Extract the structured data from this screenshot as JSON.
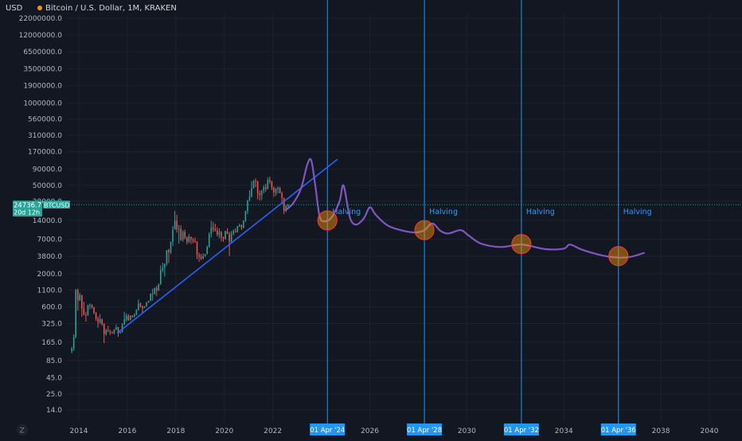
{
  "header": {
    "currency_label": "USD",
    "title": "Bitcoin / U.S. Dollar, 1M, KRAKEN"
  },
  "colors": {
    "background": "#131722",
    "grid": "#1e222d",
    "up": "#26a69a",
    "down": "#ef5350",
    "trendline": "#2962ff",
    "projection": "#7e57c2",
    "halving_line": "#2196f3",
    "circle_fill": "#ff9800",
    "circle_stroke": "#e53935",
    "price_line": "#26a69a"
  },
  "price_tag": {
    "value": "24736.7",
    "countdown": "20d 12h",
    "symbol": "BTCUSD"
  },
  "chart_data": {
    "type": "candlestick",
    "title": "Bitcoin / U.S. Dollar, 1M, KRAKEN",
    "y_scale": "log",
    "y_ticks": [
      "22000000.0",
      "12000000.0",
      "6500000.0",
      "3500000.0",
      "1900000.0",
      "1000000.0",
      "560000.0",
      "310000.0",
      "170000.0",
      "90000.0",
      "50000.0",
      "28000.0",
      "14000.0",
      "7000.0",
      "3800.0",
      "2000.0",
      "1100.0",
      "600.0",
      "325.0",
      "165.0",
      "85.0",
      "45.0",
      "25.0",
      "14.0"
    ],
    "x_ticks": [
      "2014",
      "2016",
      "2018",
      "2020",
      "2022",
      "2026",
      "2030",
      "2034",
      "2038",
      "2040"
    ],
    "candles": [
      {
        "t": "2013-09",
        "o": 120,
        "h": 140,
        "l": 110,
        "c": 130
      },
      {
        "t": "2013-10",
        "o": 130,
        "h": 220,
        "l": 120,
        "c": 200
      },
      {
        "t": "2013-11",
        "o": 200,
        "h": 1150,
        "l": 190,
        "c": 1100
      },
      {
        "t": "2013-12",
        "o": 1100,
        "h": 1160,
        "l": 520,
        "c": 760
      },
      {
        "t": "2014-01",
        "o": 760,
        "h": 1000,
        "l": 740,
        "c": 920
      },
      {
        "t": "2014-02",
        "o": 920,
        "h": 930,
        "l": 420,
        "c": 560
      },
      {
        "t": "2014-03",
        "o": 560,
        "h": 720,
        "l": 440,
        "c": 450
      },
      {
        "t": "2014-04",
        "o": 450,
        "h": 500,
        "l": 350,
        "c": 445
      },
      {
        "t": "2014-05",
        "o": 445,
        "h": 650,
        "l": 430,
        "c": 630
      },
      {
        "t": "2014-06",
        "o": 630,
        "h": 680,
        "l": 550,
        "c": 640
      },
      {
        "t": "2014-07",
        "o": 640,
        "h": 660,
        "l": 560,
        "c": 590
      },
      {
        "t": "2014-08",
        "o": 590,
        "h": 600,
        "l": 460,
        "c": 480
      },
      {
        "t": "2014-09",
        "o": 480,
        "h": 500,
        "l": 360,
        "c": 390
      },
      {
        "t": "2014-10",
        "o": 390,
        "h": 420,
        "l": 280,
        "c": 340
      },
      {
        "t": "2014-11",
        "o": 340,
        "h": 460,
        "l": 320,
        "c": 380
      },
      {
        "t": "2014-12",
        "o": 380,
        "h": 390,
        "l": 300,
        "c": 320
      },
      {
        "t": "2015-01",
        "o": 320,
        "h": 330,
        "l": 160,
        "c": 220
      },
      {
        "t": "2015-02",
        "o": 220,
        "h": 270,
        "l": 210,
        "c": 255
      },
      {
        "t": "2015-03",
        "o": 255,
        "h": 300,
        "l": 240,
        "c": 245
      },
      {
        "t": "2015-04",
        "o": 245,
        "h": 260,
        "l": 215,
        "c": 236
      },
      {
        "t": "2015-05",
        "o": 236,
        "h": 245,
        "l": 225,
        "c": 230
      },
      {
        "t": "2015-06",
        "o": 230,
        "h": 265,
        "l": 220,
        "c": 263
      },
      {
        "t": "2015-07",
        "o": 263,
        "h": 315,
        "l": 255,
        "c": 285
      },
      {
        "t": "2015-08",
        "o": 285,
        "h": 290,
        "l": 200,
        "c": 230
      },
      {
        "t": "2015-09",
        "o": 230,
        "h": 245,
        "l": 225,
        "c": 236
      },
      {
        "t": "2015-10",
        "o": 236,
        "h": 330,
        "l": 235,
        "c": 315
      },
      {
        "t": "2015-11",
        "o": 315,
        "h": 500,
        "l": 310,
        "c": 378
      },
      {
        "t": "2015-12",
        "o": 378,
        "h": 470,
        "l": 350,
        "c": 430
      },
      {
        "t": "2016-01",
        "o": 430,
        "h": 460,
        "l": 360,
        "c": 370
      },
      {
        "t": "2016-02",
        "o": 370,
        "h": 440,
        "l": 365,
        "c": 437
      },
      {
        "t": "2016-03",
        "o": 437,
        "h": 440,
        "l": 400,
        "c": 416
      },
      {
        "t": "2016-04",
        "o": 416,
        "h": 470,
        "l": 410,
        "c": 448
      },
      {
        "t": "2016-05",
        "o": 448,
        "h": 550,
        "l": 440,
        "c": 530
      },
      {
        "t": "2016-06",
        "o": 530,
        "h": 780,
        "l": 520,
        "c": 675
      },
      {
        "t": "2016-07",
        "o": 675,
        "h": 700,
        "l": 580,
        "c": 620
      },
      {
        "t": "2016-08",
        "o": 620,
        "h": 625,
        "l": 470,
        "c": 575
      },
      {
        "t": "2016-09",
        "o": 575,
        "h": 615,
        "l": 570,
        "c": 608
      },
      {
        "t": "2016-10",
        "o": 608,
        "h": 720,
        "l": 605,
        "c": 700
      },
      {
        "t": "2016-11",
        "o": 700,
        "h": 755,
        "l": 690,
        "c": 742
      },
      {
        "t": "2016-12",
        "o": 742,
        "h": 980,
        "l": 740,
        "c": 965
      },
      {
        "t": "2017-01",
        "o": 965,
        "h": 1160,
        "l": 750,
        "c": 965
      },
      {
        "t": "2017-02",
        "o": 965,
        "h": 1210,
        "l": 930,
        "c": 1190
      },
      {
        "t": "2017-03",
        "o": 1190,
        "h": 1290,
        "l": 890,
        "c": 1080
      },
      {
        "t": "2017-04",
        "o": 1080,
        "h": 1400,
        "l": 1070,
        "c": 1350
      },
      {
        "t": "2017-05",
        "o": 1350,
        "h": 2700,
        "l": 1340,
        "c": 2300
      },
      {
        "t": "2017-06",
        "o": 2300,
        "h": 3000,
        "l": 2100,
        "c": 2480
      },
      {
        "t": "2017-07",
        "o": 2480,
        "h": 2900,
        "l": 1800,
        "c": 2880
      },
      {
        "t": "2017-08",
        "o": 2880,
        "h": 4700,
        "l": 2700,
        "c": 4740
      },
      {
        "t": "2017-09",
        "o": 4740,
        "h": 4980,
        "l": 2970,
        "c": 4340
      },
      {
        "t": "2017-10",
        "o": 4340,
        "h": 6450,
        "l": 4100,
        "c": 6450
      },
      {
        "t": "2017-11",
        "o": 6450,
        "h": 11400,
        "l": 5500,
        "c": 10000
      },
      {
        "t": "2017-12",
        "o": 10000,
        "h": 19700,
        "l": 10000,
        "c": 13800
      },
      {
        "t": "2018-01",
        "o": 13800,
        "h": 17200,
        "l": 9000,
        "c": 10200
      },
      {
        "t": "2018-02",
        "o": 10200,
        "h": 11800,
        "l": 6000,
        "c": 10300
      },
      {
        "t": "2018-03",
        "o": 10300,
        "h": 11700,
        "l": 6600,
        "c": 6900
      },
      {
        "t": "2018-04",
        "o": 6900,
        "h": 9800,
        "l": 6400,
        "c": 9200
      },
      {
        "t": "2018-05",
        "o": 9200,
        "h": 10000,
        "l": 7000,
        "c": 7500
      },
      {
        "t": "2018-06",
        "o": 7500,
        "h": 7800,
        "l": 5800,
        "c": 6400
      },
      {
        "t": "2018-07",
        "o": 6400,
        "h": 8500,
        "l": 6100,
        "c": 7700
      },
      {
        "t": "2018-08",
        "o": 7700,
        "h": 7800,
        "l": 5900,
        "c": 7000
      },
      {
        "t": "2018-09",
        "o": 7000,
        "h": 7400,
        "l": 6100,
        "c": 6600
      },
      {
        "t": "2018-10",
        "o": 6600,
        "h": 7500,
        "l": 6200,
        "c": 6300
      },
      {
        "t": "2018-11",
        "o": 6300,
        "h": 6600,
        "l": 3400,
        "c": 4000
      },
      {
        "t": "2018-12",
        "o": 4000,
        "h": 4300,
        "l": 3100,
        "c": 3700
      },
      {
        "t": "2019-01",
        "o": 3700,
        "h": 4100,
        "l": 3300,
        "c": 3450
      },
      {
        "t": "2019-02",
        "o": 3450,
        "h": 4200,
        "l": 3400,
        "c": 3800
      },
      {
        "t": "2019-03",
        "o": 3800,
        "h": 4100,
        "l": 3700,
        "c": 4100
      },
      {
        "t": "2019-04",
        "o": 4100,
        "h": 5600,
        "l": 4050,
        "c": 5300
      },
      {
        "t": "2019-05",
        "o": 5300,
        "h": 9000,
        "l": 5200,
        "c": 8550
      },
      {
        "t": "2019-06",
        "o": 8550,
        "h": 13800,
        "l": 7500,
        "c": 10800
      },
      {
        "t": "2019-07",
        "o": 10800,
        "h": 13200,
        "l": 9100,
        "c": 10100
      },
      {
        "t": "2019-08",
        "o": 10100,
        "h": 12300,
        "l": 9300,
        "c": 9600
      },
      {
        "t": "2019-09",
        "o": 9600,
        "h": 10900,
        "l": 7800,
        "c": 8300
      },
      {
        "t": "2019-10",
        "o": 8300,
        "h": 10400,
        "l": 7300,
        "c": 9150
      },
      {
        "t": "2019-11",
        "o": 9150,
        "h": 9500,
        "l": 6500,
        "c": 7550
      },
      {
        "t": "2019-12",
        "o": 7550,
        "h": 7750,
        "l": 6400,
        "c": 7200
      },
      {
        "t": "2020-01",
        "o": 7200,
        "h": 9600,
        "l": 6900,
        "c": 9350
      },
      {
        "t": "2020-02",
        "o": 9350,
        "h": 10500,
        "l": 8500,
        "c": 8550
      },
      {
        "t": "2020-03",
        "o": 8550,
        "h": 9200,
        "l": 3800,
        "c": 6400
      },
      {
        "t": "2020-04",
        "o": 6400,
        "h": 9500,
        "l": 6200,
        "c": 8650
      },
      {
        "t": "2020-05",
        "o": 8650,
        "h": 10100,
        "l": 8100,
        "c": 9450
      },
      {
        "t": "2020-06",
        "o": 9450,
        "h": 10400,
        "l": 8900,
        "c": 9150
      },
      {
        "t": "2020-07",
        "o": 9150,
        "h": 11450,
        "l": 8950,
        "c": 11350
      },
      {
        "t": "2020-08",
        "o": 11350,
        "h": 12450,
        "l": 11000,
        "c": 11650
      },
      {
        "t": "2020-09",
        "o": 11650,
        "h": 12100,
        "l": 9900,
        "c": 10800
      },
      {
        "t": "2020-10",
        "o": 10800,
        "h": 14000,
        "l": 10400,
        "c": 13800
      },
      {
        "t": "2020-11",
        "o": 13800,
        "h": 19800,
        "l": 13200,
        "c": 19700
      },
      {
        "t": "2020-12",
        "o": 19700,
        "h": 29300,
        "l": 17600,
        "c": 28900
      },
      {
        "t": "2021-01",
        "o": 28900,
        "h": 41900,
        "l": 28200,
        "c": 33100
      },
      {
        "t": "2021-02",
        "o": 33100,
        "h": 58300,
        "l": 32300,
        "c": 45200
      },
      {
        "t": "2021-03",
        "o": 45200,
        "h": 61700,
        "l": 44900,
        "c": 58800
      },
      {
        "t": "2021-04",
        "o": 58800,
        "h": 64800,
        "l": 47000,
        "c": 57700
      },
      {
        "t": "2021-05",
        "o": 57700,
        "h": 59500,
        "l": 30000,
        "c": 37300
      },
      {
        "t": "2021-06",
        "o": 37300,
        "h": 41300,
        "l": 28800,
        "c": 35000
      },
      {
        "t": "2021-07",
        "o": 35000,
        "h": 42400,
        "l": 29300,
        "c": 41500
      },
      {
        "t": "2021-08",
        "o": 41500,
        "h": 50500,
        "l": 37300,
        "c": 47100
      },
      {
        "t": "2021-09",
        "o": 47100,
        "h": 52900,
        "l": 39600,
        "c": 43800
      },
      {
        "t": "2021-10",
        "o": 43800,
        "h": 67000,
        "l": 43300,
        "c": 61300
      },
      {
        "t": "2021-11",
        "o": 61300,
        "h": 69000,
        "l": 53000,
        "c": 57000
      },
      {
        "t": "2021-12",
        "o": 57000,
        "h": 59000,
        "l": 42000,
        "c": 46200
      },
      {
        "t": "2022-01",
        "o": 46200,
        "h": 47900,
        "l": 33000,
        "c": 38500
      },
      {
        "t": "2022-02",
        "o": 38500,
        "h": 45800,
        "l": 34300,
        "c": 43200
      },
      {
        "t": "2022-03",
        "o": 43200,
        "h": 48200,
        "l": 37200,
        "c": 45500
      },
      {
        "t": "2022-04",
        "o": 45500,
        "h": 47400,
        "l": 37600,
        "c": 37700
      },
      {
        "t": "2022-05",
        "o": 37700,
        "h": 40000,
        "l": 26700,
        "c": 31800
      },
      {
        "t": "2022-06",
        "o": 31800,
        "h": 31900,
        "l": 17600,
        "c": 19900
      },
      {
        "t": "2022-07",
        "o": 19900,
        "h": 24600,
        "l": 18800,
        "c": 23300
      },
      {
        "t": "2022-08",
        "o": 23300,
        "h": 25200,
        "l": 20800,
        "c": 24736.7
      }
    ],
    "trendline": [
      {
        "t": "2015-08",
        "v": 230
      },
      {
        "t": "2024-09",
        "v": 130000
      }
    ],
    "projection_path": [
      {
        "t": "2022-07",
        "v": 20000
      },
      {
        "t": "2022-11",
        "v": 26000
      },
      {
        "t": "2023-03",
        "v": 45000
      },
      {
        "t": "2023-06",
        "v": 105000
      },
      {
        "t": "2023-08",
        "v": 125000
      },
      {
        "t": "2023-10",
        "v": 50000
      },
      {
        "t": "2023-12",
        "v": 17000
      },
      {
        "t": "2024-02",
        "v": 13500
      },
      {
        "t": "2024-06",
        "v": 15500
      },
      {
        "t": "2024-10",
        "v": 28000
      },
      {
        "t": "2024-12",
        "v": 50000
      },
      {
        "t": "2025-03",
        "v": 16000
      },
      {
        "t": "2025-06",
        "v": 12000
      },
      {
        "t": "2025-10",
        "v": 15000
      },
      {
        "t": "2026-01",
        "v": 22500
      },
      {
        "t": "2026-04",
        "v": 17000
      },
      {
        "t": "2026-10",
        "v": 11500
      },
      {
        "t": "2027-06",
        "v": 9500
      },
      {
        "t": "2027-12",
        "v": 9000
      },
      {
        "t": "2028-04",
        "v": 9800
      },
      {
        "t": "2028-08",
        "v": 12500
      },
      {
        "t": "2028-12",
        "v": 9500
      },
      {
        "t": "2029-04",
        "v": 8700
      },
      {
        "t": "2029-10",
        "v": 9800
      },
      {
        "t": "2030-02",
        "v": 8000
      },
      {
        "t": "2030-08",
        "v": 6000
      },
      {
        "t": "2031-06",
        "v": 5300
      },
      {
        "t": "2032-04",
        "v": 5800
      },
      {
        "t": "2033-04",
        "v": 4900
      },
      {
        "t": "2034-01",
        "v": 5000
      },
      {
        "t": "2034-04",
        "v": 5800
      },
      {
        "t": "2034-10",
        "v": 4800
      },
      {
        "t": "2035-08",
        "v": 3900
      },
      {
        "t": "2036-04",
        "v": 3600
      },
      {
        "t": "2036-10",
        "v": 3700
      },
      {
        "t": "2037-05",
        "v": 4300
      }
    ],
    "halvings": [
      {
        "date_label": "01 Apr '24",
        "t": "2024-04",
        "label": "Halving",
        "circle_v": 14000
      },
      {
        "date_label": "01 Apr '28",
        "t": "2028-04",
        "label": "Halving",
        "circle_v": 9800
      },
      {
        "date_label": "01 Apr '32",
        "t": "2032-04",
        "label": "Halving",
        "circle_v": 5900
      },
      {
        "date_label": "01 Apr '36",
        "t": "2036-04",
        "label": "Halving",
        "circle_v": 3800
      }
    ]
  }
}
